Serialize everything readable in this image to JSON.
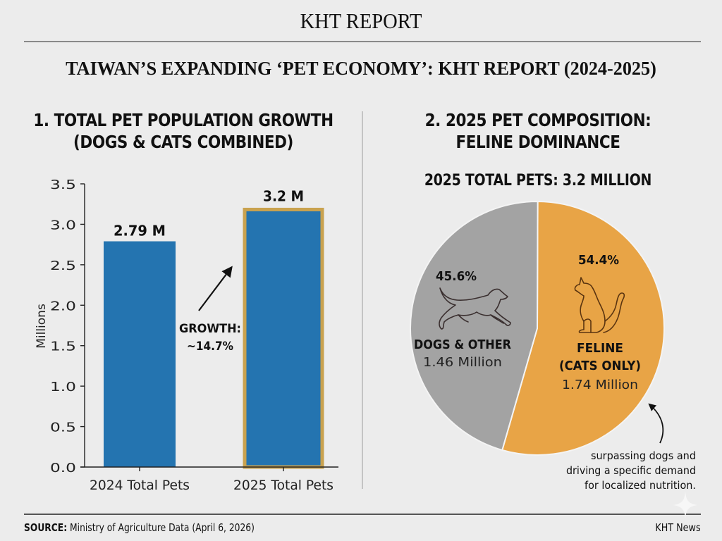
{
  "header": {
    "masthead": "KHT REPORT",
    "title": "TAIWAN’S EXPANDING ‘PET ECONOMY’: KHT REPORT (2024-2025)"
  },
  "section1": {
    "title_line1": "1. TOTAL PET POPULATION GROWTH",
    "title_line2": "(DOGS & CATS COMBINED)"
  },
  "section2": {
    "title_line1": "2. 2025 PET COMPOSITION:",
    "title_line2": "FELINE DOMINANCE",
    "subtitle": "2025 TOTAL PETS: 3.2 MILLION"
  },
  "footer": {
    "source_label": "SOURCE:",
    "source_text": "Ministry of Agriculture Data (April 6, 2026)",
    "brand": "KHT News"
  },
  "colors": {
    "bar": "#2474b0",
    "highlight_border": "#c9a24f",
    "dogs": "#a3a3a3",
    "feline": "#e8a446",
    "background": "#ececec"
  },
  "chart_data": [
    {
      "type": "bar",
      "title": "1. TOTAL PET POPULATION GROWTH (DOGS & CATS COMBINED)",
      "xlabel": "",
      "ylabel": "Millions",
      "ylim": [
        0,
        3.5
      ],
      "yticks": [
        "0.0",
        "0.5",
        "1.0",
        "1.5",
        "2.0",
        "2.5",
        "3.0",
        "3.5"
      ],
      "categories": [
        "2024 Total Pets",
        "2025 Total Pets"
      ],
      "values": [
        2.79,
        3.2
      ],
      "data_labels": [
        "2.79 M",
        "3.2 M"
      ],
      "highlighted": [
        false,
        true
      ],
      "grid": false,
      "annotation": {
        "line1": "GROWTH:",
        "line2": "~14.7%",
        "value_pct": 14.7
      }
    },
    {
      "type": "pie",
      "title": "2. 2025 PET COMPOSITION: FELINE DOMINANCE",
      "subtitle": "2025 TOTAL PETS: 3.2 MILLION",
      "slices": [
        {
          "label": "DOGS & OTHER",
          "label_line2": "",
          "value": 1.46,
          "value_text": "1.46 Million",
          "percent": 45.6,
          "percent_text": "45.6%",
          "icon": "dog-icon"
        },
        {
          "label": "FELINE",
          "label_line2": "(CATS ONLY)",
          "value": 1.74,
          "value_text": "1.74 Million",
          "percent": 54.4,
          "percent_text": "54.4%",
          "icon": "cat-icon"
        }
      ],
      "annotation": {
        "lines": [
          "surpassing dogs and",
          "driving a specific demand",
          "for localized nutrition."
        ]
      }
    }
  ]
}
